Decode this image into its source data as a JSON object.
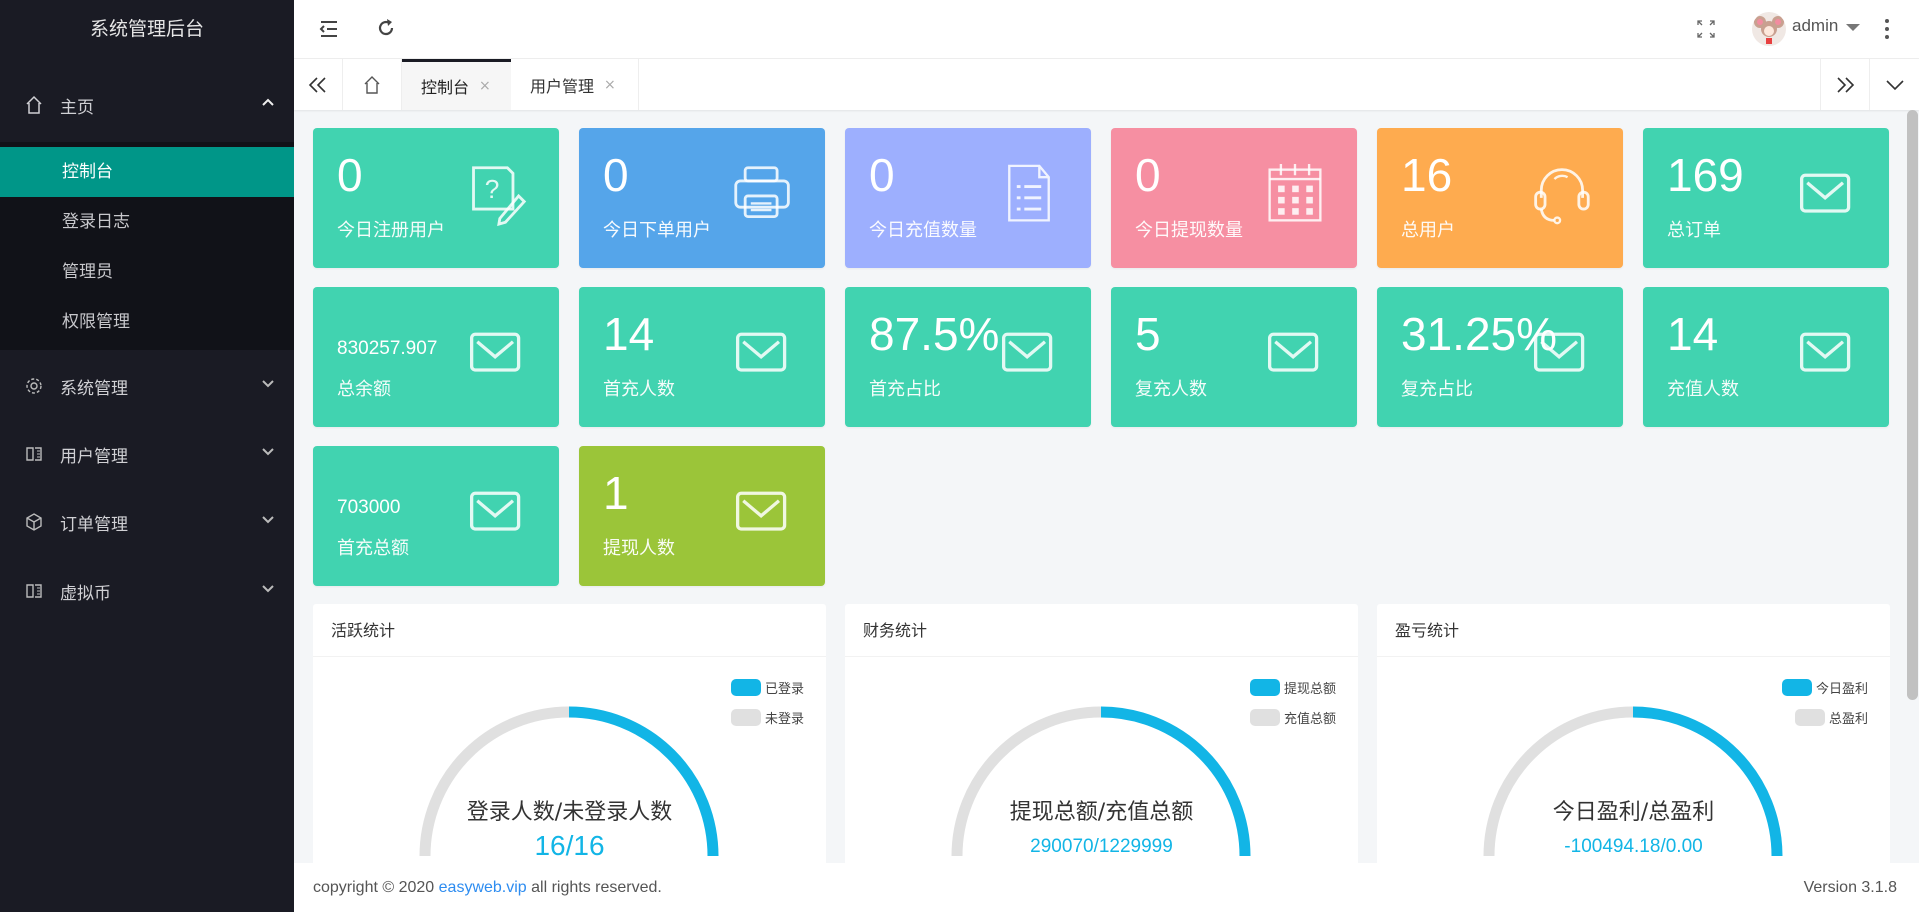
{
  "sidebar": {
    "title": "系统管理后台",
    "home": {
      "label": "主页",
      "icon": "home-icon",
      "expanded": true
    },
    "sub_items": [
      {
        "label": "控制台",
        "active": true
      },
      {
        "label": "登录日志"
      },
      {
        "label": "管理员"
      },
      {
        "label": "权限管理"
      }
    ],
    "menus": [
      {
        "label": "系统管理",
        "icon": "gear-icon"
      },
      {
        "label": "用户管理",
        "icon": "book-icon"
      },
      {
        "label": "订单管理",
        "icon": "cube-icon"
      },
      {
        "label": "虚拟币",
        "icon": "book-icon"
      }
    ]
  },
  "header": {
    "user": "admin"
  },
  "tabs": [
    {
      "label": "控制台",
      "active": true
    },
    {
      "label": "用户管理"
    }
  ],
  "tab_close": "×",
  "colors": {
    "teal": "#41d3b0",
    "blue": "#55a5ea",
    "lavender": "#9daffe",
    "pink": "#f68fa2",
    "orange": "#feab4f",
    "olive": "#9bc539",
    "accent": "#009688",
    "gauge": "#12b5e6"
  },
  "cards": [
    {
      "value": "0",
      "label": "今日注册用户",
      "icon": "question-note-icon",
      "color": "#41d3b0"
    },
    {
      "value": "0",
      "label": "今日下单用户",
      "icon": "printer-icon",
      "color": "#55a5ea"
    },
    {
      "value": "0",
      "label": "今日充值数量",
      "icon": "document-list-icon",
      "color": "#9daffe"
    },
    {
      "value": "0",
      "label": "今日提现数量",
      "icon": "calendar-icon",
      "color": "#f68fa2"
    },
    {
      "value": "16",
      "label": "总用户",
      "icon": "headset-icon",
      "color": "#feab4f"
    },
    {
      "value": "169",
      "label": "总订单",
      "icon": "mail-icon",
      "color": "#41d3b0"
    },
    {
      "value": "830257.907",
      "label": "总余额",
      "icon": "mail-icon",
      "color": "#41d3b0",
      "small": true
    },
    {
      "value": "14",
      "label": "首充人数",
      "icon": "mail-icon",
      "color": "#41d3b0"
    },
    {
      "value": "87.5%",
      "label": "首充占比",
      "icon": "mail-icon",
      "color": "#41d3b0"
    },
    {
      "value": "5",
      "label": "复充人数",
      "icon": "mail-icon",
      "color": "#41d3b0"
    },
    {
      "value": "31.25%",
      "label": "复充占比",
      "icon": "mail-icon",
      "color": "#41d3b0"
    },
    {
      "value": "14",
      "label": "充值人数",
      "icon": "mail-icon",
      "color": "#41d3b0"
    },
    {
      "value": "703000",
      "label": "首充总额",
      "icon": "mail-icon",
      "color": "#41d3b0",
      "small": true
    },
    {
      "value": "1",
      "label": "提现人数",
      "icon": "mail-icon",
      "color": "#9bc539"
    }
  ],
  "panels": [
    {
      "title": "活跃统计",
      "legend": [
        "已登录",
        "未登录"
      ],
      "center_title": "登录人数/未登录人数",
      "center_value": "16/16"
    },
    {
      "title": "财务统计",
      "legend": [
        "提现总额",
        "充值总额"
      ],
      "center_title": "提现总额/充值总额",
      "center_value": "290070/1229999"
    },
    {
      "title": "盈亏统计",
      "legend": [
        "今日盈利",
        "总盈利"
      ],
      "center_title": "今日盈利/总盈利",
      "center_value": "-100494.18/0.00"
    }
  ],
  "footer": {
    "prefix": "copyright © 2020 ",
    "link": "easyweb.vip",
    "suffix": " all rights reserved.",
    "version": "Version 3.1.8"
  }
}
